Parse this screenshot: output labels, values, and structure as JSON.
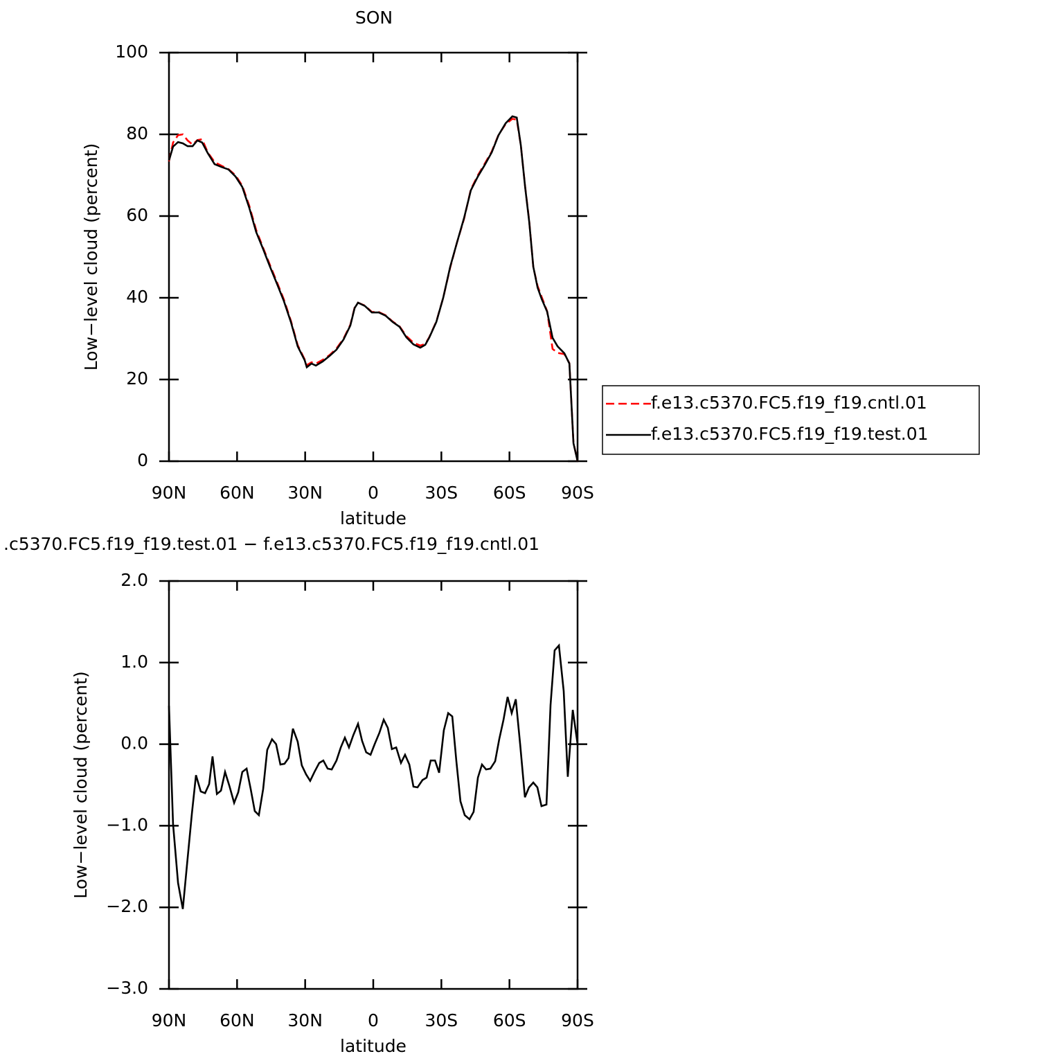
{
  "chart_data": [
    {
      "type": "line",
      "title": "SON",
      "xlabel": "latitude",
      "ylabel": "Low−level cloud (percent)",
      "xlim": [
        90,
        -90
      ],
      "xticks": [
        {
          "value": 90,
          "label": "90N"
        },
        {
          "value": 60,
          "label": "60N"
        },
        {
          "value": 30,
          "label": "30N"
        },
        0,
        {
          "value": -30,
          "label": "30S"
        },
        {
          "value": -60,
          "label": "60S"
        },
        {
          "value": -90,
          "label": "90S"
        }
      ],
      "ylim": [
        0,
        100
      ],
      "yticks": [
        0,
        20,
        40,
        60,
        80,
        100
      ],
      "x": [
        90,
        88.2,
        86,
        83.9,
        81.8,
        79.6,
        77.5,
        75.4,
        72.9,
        69.9,
        66.8,
        63.8,
        60.7,
        57.7,
        54.6,
        51.6,
        48.5,
        45.5,
        42.4,
        39.4,
        36.3,
        33.3,
        30.2,
        29.3,
        27.2,
        25.3,
        22.3,
        19.2,
        16.2,
        13.1,
        10.1,
        8.2,
        6.7,
        3.7,
        0.6,
        -2.4,
        -5.5,
        -8.5,
        -11.6,
        -14.6,
        -17.7,
        -20.7,
        -22.9,
        -24.7,
        -27.8,
        -30.8,
        -33.9,
        -36.9,
        -40,
        -43,
        -46.1,
        -49.1,
        -52.2,
        -55.2,
        -58.3,
        -61.3,
        -63.2,
        -65,
        -66.9,
        -68.7,
        -70.5,
        -72.4,
        -74.2,
        -76.6,
        -79,
        -81.2,
        -84.2,
        -86.4,
        -88.2,
        -90
      ],
      "series": [
        {
          "name": "f.e13.c5370.FC5.f19_f19.cntl.01",
          "color": "#ff0000",
          "dash": true,
          "values": [
            73.4,
            78,
            79.8,
            80,
            78.5,
            77.5,
            78.6,
            78.8,
            75.6,
            73.2,
            72.3,
            71.5,
            70,
            67.4,
            62.5,
            56.6,
            52.2,
            48,
            43.8,
            39.6,
            34.4,
            28.4,
            24.9,
            23.5,
            24.2,
            23.9,
            24.8,
            26,
            27.6,
            30,
            33.4,
            37.6,
            38.8,
            38.1,
            36.5,
            36.5,
            35.7,
            34.2,
            33,
            30.6,
            29,
            28.3,
            28.7,
            30.4,
            34.2,
            40,
            47.4,
            53.6,
            59.3,
            66.5,
            70,
            72.8,
            75.8,
            79.9,
            82.5,
            83.8,
            83.6,
            77.3,
            67.2,
            58.8,
            47.5,
            42.9,
            40.2,
            36.7,
            27.5,
            26.5,
            26.2,
            24,
            4.5,
            0
          ]
        },
        {
          "name": "f.e13.c5370.FC5.f19_f19.test.01",
          "color": "#000000",
          "dash": false,
          "values": [
            73.6,
            77,
            78.1,
            77.8,
            77.1,
            77.1,
            78.5,
            78,
            75.4,
            72.7,
            72,
            71.4,
            69.7,
            67.1,
            62,
            56.1,
            51.9,
            47.6,
            43.4,
            39.2,
            34.1,
            28.1,
            24.7,
            23,
            23.9,
            23.4,
            24.4,
            25.8,
            27.3,
            29.8,
            33.2,
            37.5,
            38.8,
            38,
            36.4,
            36.4,
            35.6,
            34.1,
            32.9,
            30.3,
            28.6,
            27.8,
            28.5,
            30.3,
            34.1,
            40,
            47.6,
            53.6,
            59.5,
            66.3,
            69.7,
            72.5,
            75.6,
            79.8,
            82.7,
            84.4,
            84.1,
            77.3,
            67.1,
            58.6,
            47.6,
            42.5,
            39.7,
            36.6,
            30.2,
            28.1,
            26.4,
            23.9,
            4.4,
            0
          ]
        }
      ]
    },
    {
      "type": "line",
      "title": ".c5370.FC5.f19_f19.test.01 − f.e13.c5370.FC5.f19_f19.cntl.01",
      "xlabel": "latitude",
      "ylabel": "Low−level cloud (percent)",
      "xlim": [
        90,
        -90
      ],
      "xticks": [
        {
          "value": 90,
          "label": "90N"
        },
        {
          "value": 60,
          "label": "60N"
        },
        {
          "value": 30,
          "label": "30N"
        },
        0,
        {
          "value": -30,
          "label": "30S"
        },
        {
          "value": -60,
          "label": "60S"
        },
        {
          "value": -90,
          "label": "90S"
        }
      ],
      "ylim": [
        -3,
        2
      ],
      "yticks": [
        {
          "value": -3,
          "label": "−3.0"
        },
        {
          "value": -2,
          "label": "−2.0"
        },
        {
          "value": -1,
          "label": "−1.0"
        },
        {
          "value": 0,
          "label": "0.0"
        },
        {
          "value": 1,
          "label": "1.0"
        },
        {
          "value": 2,
          "label": "2.0"
        }
      ],
      "x": [
        90,
        88.2,
        86,
        83.9,
        82.1,
        79.9,
        78.1,
        76,
        74.1,
        72.3,
        70.8,
        68.9,
        67.1,
        65.3,
        63.4,
        61.3,
        59.5,
        57.7,
        55.8,
        54,
        52.2,
        50.4,
        48.5,
        46.7,
        44.6,
        42.8,
        40.9,
        39.1,
        37.3,
        35.4,
        33.3,
        31.5,
        29.6,
        27.8,
        25.9,
        23.8,
        22,
        20.1,
        18.3,
        16.2,
        14.3,
        12.5,
        10.7,
        8.8,
        6.7,
        4.9,
        3.1,
        1.2,
        -0.6,
        -2.7,
        -4.6,
        -6.4,
        -8.2,
        -10.1,
        -12.2,
        -14,
        -15.9,
        -17.7,
        -19.5,
        -21.7,
        -23.5,
        -25.3,
        -27.2,
        -29,
        -31.1,
        -33,
        -34.8,
        -36.6,
        -38.4,
        -40.3,
        -42.4,
        -44.2,
        -46.1,
        -47.9,
        -49.7,
        -51.6,
        -53.7,
        -55.5,
        -57.4,
        -59.2,
        -61,
        -62.8,
        -64.7,
        -66.8,
        -68.6,
        -70.5,
        -72.3,
        -74.1,
        -76.3,
        -78.1,
        -79.9,
        -81.8,
        -83.9,
        -85.7,
        -87.9,
        -90
      ],
      "series": [
        {
          "name": "",
          "color": "#000000",
          "dash": false,
          "values": [
            0.47,
            -0.98,
            -1.7,
            -2.02,
            -1.49,
            -0.85,
            -0.38,
            -0.58,
            -0.6,
            -0.49,
            -0.15,
            -0.61,
            -0.57,
            -0.34,
            -0.51,
            -0.72,
            -0.59,
            -0.34,
            -0.3,
            -0.55,
            -0.82,
            -0.87,
            -0.55,
            -0.07,
            0.06,
            0,
            -0.25,
            -0.24,
            -0.17,
            0.19,
            0.03,
            -0.26,
            -0.37,
            -0.45,
            -0.34,
            -0.23,
            -0.2,
            -0.3,
            -0.31,
            -0.2,
            -0.04,
            0.08,
            -0.04,
            0.11,
            0.25,
            0.04,
            -0.1,
            -0.13,
            0,
            0.14,
            0.3,
            0.2,
            -0.06,
            -0.04,
            -0.23,
            -0.13,
            -0.25,
            -0.52,
            -0.53,
            -0.44,
            -0.41,
            -0.2,
            -0.2,
            -0.35,
            0.17,
            0.38,
            0.34,
            -0.21,
            -0.7,
            -0.87,
            -0.92,
            -0.83,
            -0.41,
            -0.25,
            -0.31,
            -0.3,
            -0.21,
            0.06,
            0.3,
            0.58,
            0.38,
            0.55,
            0,
            -0.65,
            -0.53,
            -0.47,
            -0.53,
            -0.76,
            -0.74,
            0.48,
            1.15,
            1.21,
            0.65,
            -0.4,
            0.42,
            0
          ]
        }
      ]
    }
  ]
}
